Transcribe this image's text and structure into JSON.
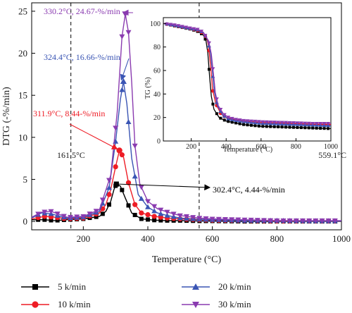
{
  "chart_data": [
    {
      "type": "line",
      "xlabel": "Temperature (°C)",
      "ylabel": "DTG (-%/min)",
      "xlim": [
        40,
        1000
      ],
      "ylim": [
        -1,
        26
      ],
      "x_ticks": [
        "200",
        "400",
        "600",
        "800",
        "1000"
      ],
      "y_ticks": [
        "0",
        "5",
        "10",
        "15",
        "20",
        "25"
      ],
      "grid": false,
      "legend_position": "bottom",
      "series": [
        {
          "name": "5 k/min",
          "color": "#000000",
          "marker": "square",
          "x": [
            40,
            80,
            110,
            150,
            200,
            250,
            270,
            285,
            295,
            302.4,
            315,
            330,
            350,
            380,
            420,
            460,
            500,
            560,
            600,
            700,
            800,
            900,
            1000
          ],
          "y": [
            0.2,
            0.2,
            0.1,
            0.2,
            0.3,
            0.6,
            1.2,
            2.4,
            3.8,
            4.44,
            4.2,
            2.8,
            1.0,
            0.3,
            0.15,
            0.1,
            0.1,
            0.05,
            0.05,
            0.0,
            0.0,
            0.0,
            0.0
          ]
        },
        {
          "name": "10 k/min",
          "color": "#ee1c25",
          "marker": "circle",
          "x": [
            40,
            80,
            110,
            150,
            200,
            250,
            270,
            285,
            300,
            311.9,
            325,
            340,
            360,
            380,
            420,
            460,
            500,
            560,
            600,
            700,
            800,
            900,
            1000
          ],
          "y": [
            0.3,
            0.6,
            0.5,
            0.3,
            0.4,
            1.0,
            2.0,
            3.8,
            6.5,
            8.44,
            7.6,
            4.6,
            2.0,
            1.0,
            0.6,
            0.4,
            0.3,
            0.2,
            0.15,
            0.1,
            0.05,
            0.05,
            0.05
          ]
        },
        {
          "name": "20 k/min",
          "color": "#3a55b4",
          "marker": "triangle-up",
          "x": [
            40,
            70,
            100,
            150,
            200,
            250,
            280,
            300,
            315,
            324.4,
            335,
            350,
            370,
            400,
            430,
            460,
            500,
            560,
            600,
            700,
            800,
            900,
            1000
          ],
          "y": [
            0.4,
            1.0,
            0.9,
            0.4,
            0.5,
            1.2,
            4.0,
            9.5,
            14.5,
            16.66,
            14.0,
            7.5,
            3.2,
            1.7,
            1.0,
            0.7,
            0.4,
            0.25,
            0.2,
            0.1,
            0.1,
            0.05,
            0.05
          ]
        },
        {
          "name": "30 k/min",
          "color": "#8a3bb0",
          "marker": "triangle-down",
          "x": [
            40,
            70,
            100,
            150,
            200,
            250,
            285,
            305,
            320,
            330.2,
            340,
            350,
            360,
            375,
            400,
            430,
            470,
            500,
            560,
            600,
            700,
            800,
            900,
            1000
          ],
          "y": [
            0.5,
            1.1,
            1.2,
            0.5,
            0.6,
            1.4,
            5.5,
            13.0,
            22.0,
            24.67,
            22.5,
            16.5,
            9.0,
            4.5,
            2.4,
            1.5,
            1.0,
            0.7,
            0.4,
            0.3,
            0.2,
            0.1,
            0.1,
            0.1
          ]
        }
      ],
      "reference_lines": [
        {
          "x": 161.5,
          "label": "161.5°C"
        },
        {
          "x": 559.1,
          "label": "559.1°C"
        }
      ],
      "annotations": [
        {
          "series": "30 k/min",
          "text": "330.2°C, 24.67-%/min",
          "color": "#8a3bb0"
        },
        {
          "series": "20 k/min",
          "text": "324.4°C, 16.66-%/min",
          "color": "#3a55b4"
        },
        {
          "series": "10 k/min",
          "text": "311.9°C, 8.44-%/min",
          "color": "#ee1c25"
        },
        {
          "series": "5 k/min",
          "text": "302.4°C, 4.44-%/min",
          "color": "#000000"
        }
      ]
    },
    {
      "type": "line",
      "xlabel": "Temperature (°C)",
      "ylabel": "TG (%)",
      "xlim": [
        40,
        1000
      ],
      "ylim": [
        0,
        105
      ],
      "x_ticks": [
        "200",
        "400",
        "600",
        "800",
        "1000"
      ],
      "y_ticks": [
        "0",
        "20",
        "40",
        "60",
        "80",
        "100"
      ],
      "grid": false,
      "series": [
        {
          "name": "5 k/min",
          "color": "#000000",
          "x": [
            40,
            100,
            150,
            200,
            240,
            270,
            285,
            295,
            305,
            315,
            330,
            360,
            400,
            450,
            500,
            600,
            700,
            800,
            900,
            1000
          ],
          "y": [
            100,
            98,
            96.5,
            95,
            93,
            90,
            85,
            75,
            55,
            38,
            27,
            20,
            17,
            15.5,
            14,
            12.5,
            12,
            11.5,
            11,
            10.5
          ]
        },
        {
          "name": "10 k/min",
          "color": "#ee1c25",
          "x": [
            40,
            100,
            150,
            200,
            240,
            270,
            290,
            300,
            312,
            322,
            340,
            370,
            400,
            450,
            500,
            600,
            700,
            800,
            900,
            1000
          ],
          "y": [
            100,
            98.5,
            97,
            95.5,
            94,
            91.5,
            87,
            80,
            62,
            44,
            32,
            23,
            20,
            18,
            17,
            15.5,
            15,
            14.5,
            14,
            14
          ]
        },
        {
          "name": "20 k/min",
          "color": "#3a55b4",
          "x": [
            40,
            100,
            150,
            200,
            240,
            270,
            295,
            310,
            322,
            332,
            350,
            380,
            410,
            450,
            500,
            600,
            700,
            800,
            900,
            1000
          ],
          "y": [
            100,
            98.5,
            97,
            95.5,
            94.5,
            92,
            86,
            75,
            58,
            42,
            30,
            22,
            19,
            17.5,
            16.5,
            15,
            14.5,
            14,
            13.5,
            13
          ]
        },
        {
          "name": "30 k/min",
          "color": "#8a3bb0",
          "x": [
            40,
            100,
            150,
            200,
            240,
            270,
            300,
            315,
            328,
            338,
            355,
            385,
            415,
            455,
            500,
            600,
            700,
            800,
            900,
            1000
          ],
          "y": [
            100,
            99,
            97.5,
            96,
            95,
            92.5,
            85,
            74,
            56,
            41,
            30,
            23,
            20,
            18.5,
            17.5,
            16.5,
            16,
            15.5,
            15,
            15
          ]
        }
      ]
    }
  ]
}
